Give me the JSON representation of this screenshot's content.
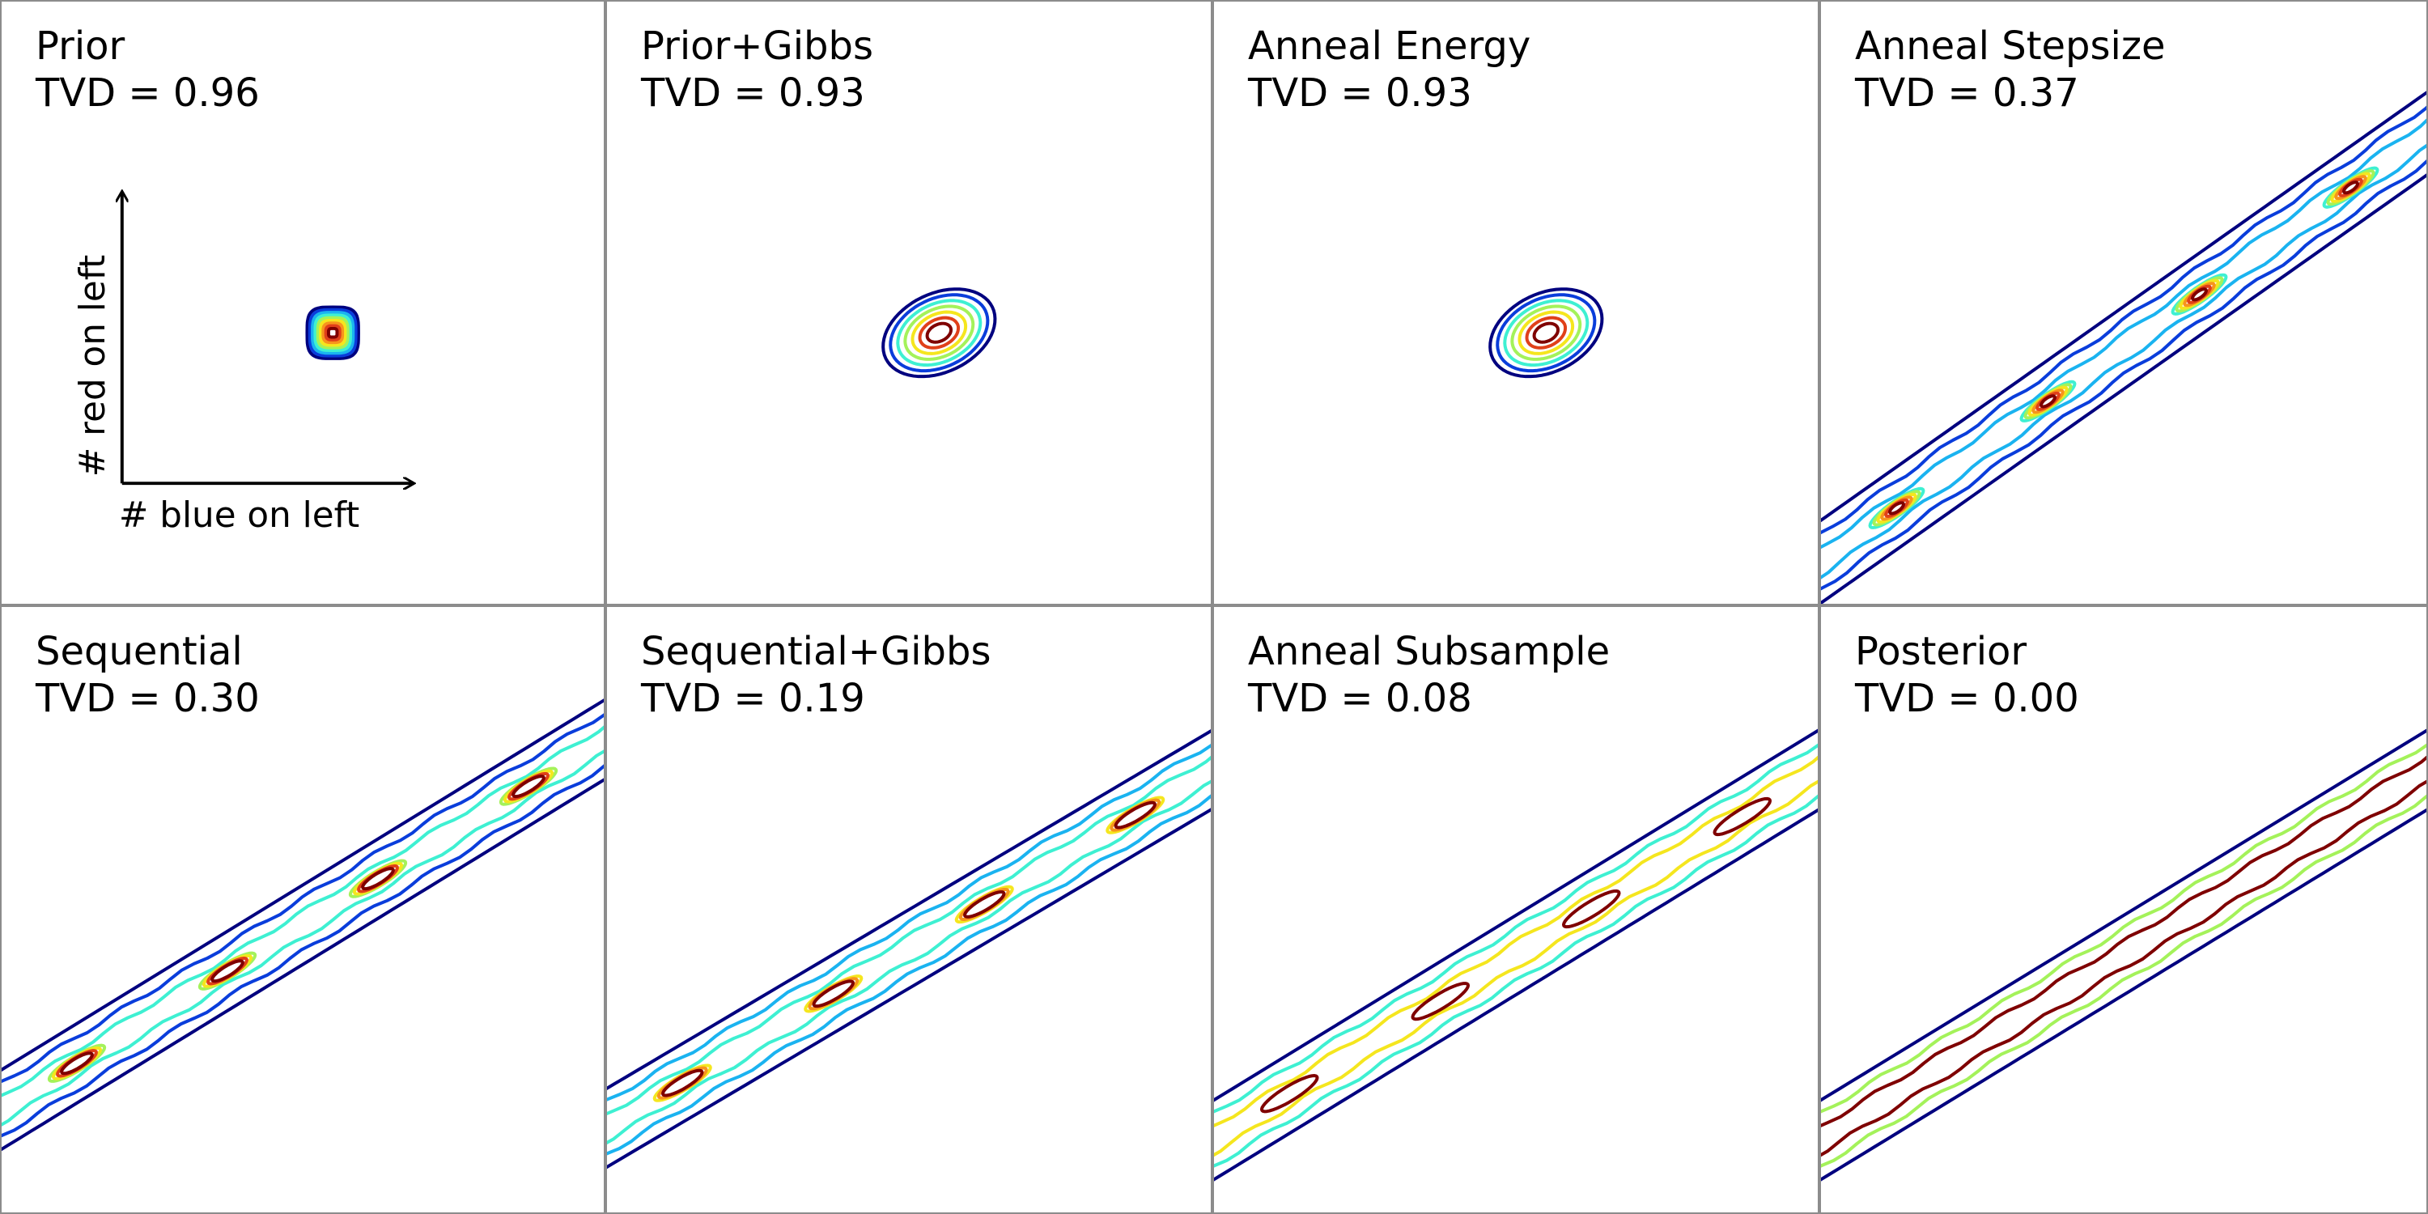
{
  "colors": {
    "levels": [
      "#00007f",
      "#0a3ddb",
      "#1ab3f0",
      "#3ef0d2",
      "#a4f25a",
      "#f5e61e",
      "#f7941d",
      "#e0401a",
      "#7f0000"
    ],
    "divider": "#8c8c8c"
  },
  "axes_inset": {
    "xlabel": "# blue on left",
    "ylabel": "# red on left"
  },
  "chart_data": [
    {
      "type": "contour",
      "title": "Prior",
      "metric": "TVD = 0.96",
      "tvd": 0.96,
      "pattern": "spot",
      "center": [
        0.55,
        0.45
      ],
      "spread": [
        0.04,
        0.04
      ],
      "levels": 9,
      "grid": false
    },
    {
      "type": "contour",
      "title": "Prior+Gibbs",
      "metric": "TVD = 0.93",
      "tvd": 0.93,
      "pattern": "blob",
      "center": [
        0.55,
        0.45
      ],
      "spread": [
        0.09,
        0.06
      ],
      "levels": 7,
      "grid": false
    },
    {
      "type": "contour",
      "title": "Anneal Energy",
      "metric": "TVD = 0.93",
      "tvd": 0.93,
      "pattern": "blob",
      "center": [
        0.55,
        0.45
      ],
      "spread": [
        0.09,
        0.06
      ],
      "levels": 7,
      "grid": false
    },
    {
      "type": "contour",
      "title": "Anneal Stepsize",
      "metric": "TVD = 0.37",
      "tvd": 0.37,
      "pattern": "band",
      "band_start": [
        0.0,
        0.07
      ],
      "band_end": [
        1.0,
        0.78
      ],
      "levels": 9,
      "grid": false
    },
    {
      "type": "contour",
      "title": "Sequential",
      "metric": "TVD = 0.30",
      "tvd": 0.3,
      "pattern": "band",
      "band_start": [
        0.0,
        0.17
      ],
      "band_end": [
        1.0,
        0.78
      ],
      "levels": 7,
      "grid": false
    },
    {
      "type": "contour",
      "title": "Sequential+Gibbs",
      "metric": "TVD = 0.19",
      "tvd": 0.19,
      "pattern": "band",
      "band_start": [
        0.0,
        0.14
      ],
      "band_end": [
        1.0,
        0.73
      ],
      "levels": 6,
      "grid": false
    },
    {
      "type": "contour",
      "title": "Anneal Subsample",
      "metric": "TVD = 0.08",
      "tvd": 0.08,
      "pattern": "band",
      "band_start": [
        0.0,
        0.12
      ],
      "band_end": [
        1.0,
        0.73
      ],
      "levels": 4,
      "grid": false
    },
    {
      "type": "contour",
      "title": "Posterior",
      "metric": "TVD = 0.00",
      "tvd": 0.0,
      "pattern": "band",
      "band_start": [
        0.0,
        0.12
      ],
      "band_end": [
        1.0,
        0.73
      ],
      "levels": 3,
      "grid": false
    }
  ]
}
